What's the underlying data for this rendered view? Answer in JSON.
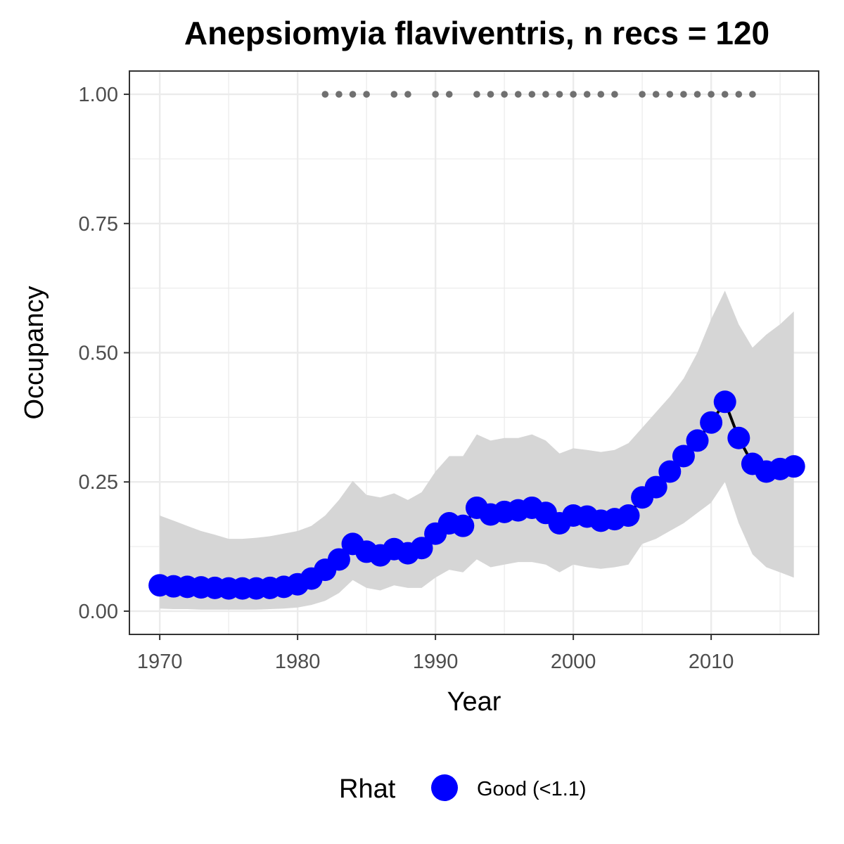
{
  "chart_data": {
    "type": "line",
    "title": "Anepsiomyia flaviventris, n recs = 120",
    "xlabel": "Year",
    "ylabel": "Occupancy",
    "xlim": [
      1967.8,
      2017.8
    ],
    "ylim": [
      -0.045,
      1.045
    ],
    "x_ticks": [
      1970,
      1980,
      1990,
      2000,
      2010
    ],
    "y_ticks": [
      0,
      0.25,
      0.5,
      0.75,
      1
    ],
    "y_tick_labels": [
      "0.00",
      "0.25",
      "0.50",
      "0.75",
      "1.00"
    ],
    "grid": true,
    "legend": {
      "title": "Rhat",
      "position": "bottom",
      "entries": [
        {
          "label": "Good (<1.1)",
          "color": "#0000ff"
        }
      ]
    },
    "colors": {
      "series": "#0000ff",
      "line": "#000000",
      "ribbon": "#d6d6d6",
      "records": "#707070",
      "grid": "#ebebeb",
      "panel_border": "#333333"
    },
    "series": [
      {
        "name": "Occupancy",
        "x": [
          1970,
          1971,
          1972,
          1973,
          1974,
          1975,
          1976,
          1977,
          1978,
          1979,
          1980,
          1981,
          1982,
          1983,
          1984,
          1985,
          1986,
          1987,
          1988,
          1989,
          1990,
          1991,
          1992,
          1993,
          1994,
          1995,
          1996,
          1997,
          1998,
          1999,
          2000,
          2001,
          2002,
          2003,
          2004,
          2005,
          2006,
          2007,
          2008,
          2009,
          2010,
          2011,
          2012,
          2013,
          2014,
          2015,
          2016
        ],
        "y": [
          0.05,
          0.048,
          0.047,
          0.046,
          0.045,
          0.044,
          0.044,
          0.044,
          0.045,
          0.047,
          0.052,
          0.063,
          0.08,
          0.1,
          0.13,
          0.115,
          0.108,
          0.12,
          0.112,
          0.122,
          0.15,
          0.17,
          0.165,
          0.2,
          0.187,
          0.192,
          0.195,
          0.2,
          0.19,
          0.17,
          0.185,
          0.183,
          0.175,
          0.178,
          0.185,
          0.22,
          0.24,
          0.27,
          0.3,
          0.33,
          0.365,
          0.405,
          0.335,
          0.285,
          0.27,
          0.275,
          0.28
        ],
        "lower": [
          0.005,
          0.004,
          0.004,
          0.003,
          0.003,
          0.003,
          0.003,
          0.003,
          0.004,
          0.005,
          0.007,
          0.012,
          0.02,
          0.035,
          0.06,
          0.045,
          0.04,
          0.05,
          0.045,
          0.045,
          0.065,
          0.08,
          0.075,
          0.1,
          0.085,
          0.09,
          0.095,
          0.095,
          0.09,
          0.075,
          0.09,
          0.085,
          0.082,
          0.085,
          0.09,
          0.13,
          0.14,
          0.155,
          0.17,
          0.19,
          0.21,
          0.25,
          0.17,
          0.11,
          0.085,
          0.075,
          0.065
        ],
        "upper": [
          0.185,
          0.175,
          0.165,
          0.155,
          0.148,
          0.14,
          0.14,
          0.142,
          0.145,
          0.15,
          0.155,
          0.165,
          0.185,
          0.215,
          0.252,
          0.225,
          0.22,
          0.228,
          0.215,
          0.23,
          0.27,
          0.3,
          0.3,
          0.342,
          0.33,
          0.335,
          0.335,
          0.342,
          0.33,
          0.305,
          0.315,
          0.312,
          0.308,
          0.312,
          0.325,
          0.355,
          0.385,
          0.415,
          0.45,
          0.5,
          0.565,
          0.62,
          0.555,
          0.51,
          0.535,
          0.555,
          0.58
        ]
      }
    ],
    "records": {
      "y": 1.0,
      "x": [
        1982,
        1983,
        1984,
        1985,
        1987,
        1988,
        1990,
        1991,
        1993,
        1994,
        1995,
        1996,
        1997,
        1998,
        1999,
        2000,
        2001,
        2002,
        2003,
        2005,
        2006,
        2007,
        2008,
        2009,
        2010,
        2011,
        2012,
        2013
      ]
    }
  }
}
